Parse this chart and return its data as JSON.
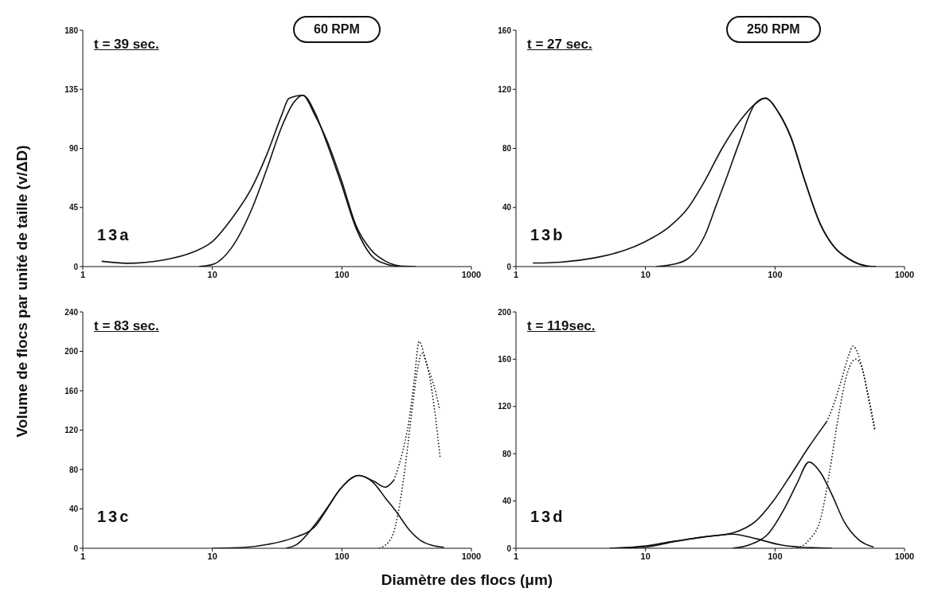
{
  "chart_data": [
    {
      "type": "line",
      "title": "60 RPM",
      "ylabel": "Volume de flocs par unité de taille (v/ΔD)",
      "log": "x",
      "marker": "none",
      "xlim": [
        1,
        1000
      ],
      "xticks": [
        1,
        10,
        100,
        1000
      ],
      "ylim": [
        0,
        180
      ],
      "yticks": [
        0,
        45,
        90,
        135,
        180
      ],
      "annotations": [
        "t = 39 sec.",
        "13a"
      ],
      "series": [
        {
          "color": "#111111",
          "line_style": "solid",
          "x": [
            1.4,
            2.2,
            4.2,
            7.1,
            10,
            14,
            20.4,
            26.5,
            34.5,
            39,
            50,
            61.5,
            76,
            99,
            129,
            167,
            218,
            283,
            371
          ],
          "values": [
            4,
            2.5,
            5,
            11,
            19,
            36,
            61,
            86,
            116,
            128,
            130.5,
            116,
            97,
            66,
            31,
            13,
            4,
            0.5,
            0
          ]
        },
        {
          "color": "#111111",
          "line_style": "solid",
          "x": [
            7.9,
            10.3,
            14,
            20.4,
            26.5,
            34.5,
            42.5,
            50,
            61.5,
            76,
            99,
            129,
            167,
            218,
            283
          ],
          "values": [
            0,
            2,
            14,
            45,
            75,
            107,
            125,
            130.5,
            118,
            95,
            63,
            29,
            9,
            2,
            0
          ]
        }
      ]
    },
    {
      "type": "line",
      "title": "250 RPM",
      "log": "x",
      "marker": "none",
      "xlim": [
        1,
        1000
      ],
      "xticks": [
        1,
        10,
        100,
        1000
      ],
      "ylim": [
        0,
        160
      ],
      "yticks": [
        0,
        40,
        80,
        120,
        160
      ],
      "annotations": [
        "t = 27 sec.",
        "13b"
      ],
      "series": [
        {
          "color": "#111111",
          "line_style": "solid",
          "x": [
            1.35,
            2.2,
            4.1,
            6.9,
            10,
            15.3,
            21,
            28.7,
            39,
            54,
            70,
            84,
            107,
            132,
            170,
            223,
            288,
            374,
            513,
            600
          ],
          "values": [
            2.4,
            3,
            6,
            11,
            17,
            27,
            39,
            58,
            80,
            99,
            110,
            114,
            104,
            88,
            58,
            29,
            13,
            5,
            0.4,
            0
          ]
        },
        {
          "color": "#111111",
          "line_style": "solid",
          "x": [
            12,
            15.3,
            21,
            28.7,
            35,
            43,
            54,
            70,
            84,
            107,
            132,
            170,
            223,
            288,
            374,
            513,
            600
          ],
          "values": [
            0,
            1,
            5,
            21,
            41,
            62,
            86,
            110,
            114,
            104,
            88,
            58,
            29,
            13,
            5,
            0.4,
            0
          ]
        }
      ]
    },
    {
      "type": "line",
      "xlabel": "Diamètre des flocs (μm)",
      "log": "x",
      "marker": "none",
      "xlim": [
        1,
        1000
      ],
      "xticks": [
        1,
        10,
        100,
        1000
      ],
      "ylim": [
        0,
        240
      ],
      "yticks": [
        0,
        40,
        80,
        120,
        160,
        200,
        240
      ],
      "annotations": [
        "t = 83 sec.",
        "13c"
      ],
      "series": [
        {
          "color": "#111111",
          "line_style": "solid",
          "x": [
            10,
            18,
            27,
            41,
            62,
            76,
            97,
            135,
            177,
            217,
            252
          ],
          "values": [
            0,
            1,
            4,
            10,
            22,
            39,
            60,
            74,
            68,
            62,
            69
          ]
        },
        {
          "color": "#111111",
          "line_style": "dotted",
          "x": [
            252,
            288,
            330,
            363,
            395,
            450,
            512,
            567
          ],
          "values": [
            69,
            93,
            130,
            172,
            210,
            187,
            166,
            142
          ]
        },
        {
          "color": "#111111",
          "line_style": "solid",
          "x": [
            37,
            45,
            62,
            76,
            97,
            135,
            177,
            217,
            267,
            330,
            405,
            497,
            615
          ],
          "values": [
            0,
            4,
            24,
            40,
            60,
            74,
            66,
            51,
            36,
            19,
            8,
            3,
            1
          ]
        },
        {
          "color": "#111111",
          "line_style": "dotted",
          "x": [
            195,
            240,
            280,
            311,
            345,
            383,
            415,
            470,
            525,
            575
          ],
          "values": [
            0,
            10,
            45,
            87,
            136,
            181,
            198,
            178,
            136,
            91
          ]
        }
      ]
    },
    {
      "type": "line",
      "log": "x",
      "marker": "none",
      "xlim": [
        1,
        1000
      ],
      "xticks": [
        1,
        10,
        100,
        1000
      ],
      "ylim": [
        0,
        200
      ],
      "yticks": [
        0,
        40,
        80,
        120,
        160,
        200
      ],
      "annotations": [
        "t = 119sec.",
        "13d"
      ],
      "series": [
        {
          "color": "#111111",
          "line_style": "solid",
          "x": [
            5.3,
            10,
            16.6,
            28,
            47,
            72,
            97,
            134,
            183,
            250
          ],
          "values": [
            0,
            2,
            6,
            9.5,
            13,
            23.5,
            40,
            63,
            86,
            107
          ]
        },
        {
          "color": "#111111",
          "line_style": "dotted",
          "x": [
            250,
            276,
            325,
            370,
            400,
            470,
            519,
            590
          ],
          "values": [
            107,
            118,
            142,
            163,
            171,
            153,
            132,
            101
          ]
        },
        {
          "color": "#111111",
          "line_style": "solid",
          "x": [
            5.3,
            10,
            16.6,
            28,
            47,
            72,
            109,
            156,
            276
          ],
          "values": [
            0,
            1,
            5.6,
            9.5,
            12,
            8,
            3,
            1,
            0
          ]
        },
        {
          "color": "#111111",
          "line_style": "solid",
          "x": [
            47,
            64,
            88,
            120,
            148,
            183,
            225,
            276,
            340,
            445,
            577
          ],
          "values": [
            0,
            3,
            12,
            35,
            55,
            73,
            64,
            45,
            23,
            7,
            1
          ]
        },
        {
          "color": "#111111",
          "line_style": "dotted",
          "x": [
            148,
            183,
            225,
            265,
            309,
            361,
            420,
            465,
            519,
            590
          ],
          "values": [
            0,
            7,
            25,
            66,
            112,
            148,
            160,
            154,
            130,
            99
          ]
        }
      ]
    }
  ]
}
